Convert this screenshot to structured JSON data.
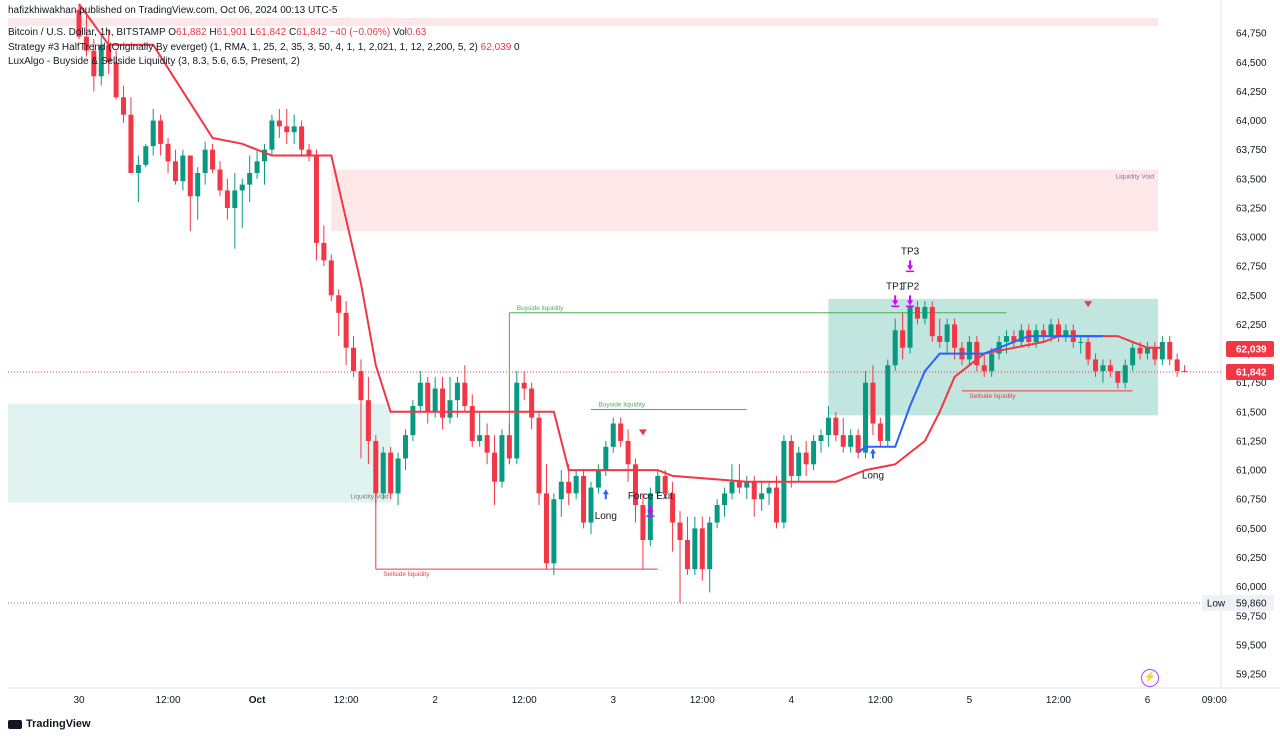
{
  "header": {
    "published": "hafizkhiwakhan published on TradingView.com, Oct 06, 2024 00:13 UTC-5",
    "symbol": "Bitcoin / U.S. Dollar, 1h, BITSTAMP",
    "o_label": "O",
    "o": "61,882",
    "h_label": "H",
    "h": "61,901",
    "l_label": "L",
    "l": "61,842",
    "c_label": "C",
    "c": "61,842",
    "change": "−40 (−0.06%)",
    "vol_label": "Vol",
    "vol": "0.63",
    "strategy": "Strategy #3 HalfTrend (Originally By everget) (1, RMA, 1, 25, 2, 35, 3, 50, 4, 1, 1, 2,021, 1, 12, 2,200, 5, 2)",
    "strategy_value": "62,039",
    "strategy_zero": "0",
    "lux": "LuxAlgo - Buyside & Sellside Liquidity (3, 8.3, 5.6, 6.5, Present, 2)"
  },
  "footer": {
    "brand": "TradingView"
  },
  "chart_data": {
    "type": "candlestick",
    "y_ticks": [
      59250,
      59500,
      59750,
      60000,
      60250,
      60500,
      60750,
      61000,
      61250,
      61500,
      61750,
      62000,
      62250,
      62500,
      62750,
      63000,
      63250,
      63500,
      63750,
      64000,
      64250,
      64500,
      64750
    ],
    "y_tick_labels": [
      "59,250",
      "59,500",
      "59,750",
      "60,000",
      "60,250",
      "60,500",
      "60,750",
      "61,000",
      "61,250",
      "61,500",
      "61,750",
      "62,000",
      "62,250",
      "62,500",
      "62,750",
      "63,000",
      "63,250",
      "63,500",
      "63,750",
      "64,000",
      "64,250",
      "64,500",
      "64,750"
    ],
    "ylim": [
      59130,
      64880
    ],
    "x_ticks": [
      {
        "label": "30",
        "bar": 0
      },
      {
        "label": "12:00",
        "bar": 12
      },
      {
        "label": "Oct",
        "bar": 24
      },
      {
        "label": "12:00",
        "bar": 36
      },
      {
        "label": "2",
        "bar": 48
      },
      {
        "label": "12:00",
        "bar": 60
      },
      {
        "label": "3",
        "bar": 72
      },
      {
        "label": "12:00",
        "bar": 84
      },
      {
        "label": "4",
        "bar": 96
      },
      {
        "label": "12:00",
        "bar": 108
      },
      {
        "label": "5",
        "bar": 120
      },
      {
        "label": "12:00",
        "bar": 132
      },
      {
        "label": "6",
        "bar": 144
      },
      {
        "label": "09:00",
        "bar": 153
      }
    ],
    "price_labels": [
      {
        "text": "62,039",
        "value": 62039,
        "color": "#f23645"
      },
      {
        "text": "61,842",
        "value": 61842,
        "color": "#f23645"
      },
      {
        "text": "59,860",
        "value": 59860,
        "color": "#eef1f6",
        "label": "Low"
      }
    ],
    "candles": [
      [
        64950,
        65000,
        64700,
        64720
      ],
      [
        64720,
        64900,
        64550,
        64600
      ],
      [
        64600,
        64700,
        64250,
        64380
      ],
      [
        64380,
        64720,
        64300,
        64650
      ],
      [
        64650,
        64780,
        64400,
        64500
      ],
      [
        64500,
        64600,
        64180,
        64200
      ],
      [
        64200,
        64300,
        63980,
        64050
      ],
      [
        64050,
        64200,
        63550,
        63550
      ],
      [
        63550,
        63700,
        63300,
        63620
      ],
      [
        63620,
        63800,
        63600,
        63780
      ],
      [
        63780,
        64100,
        63700,
        64000
      ],
      [
        64000,
        64050,
        63700,
        63800
      ],
      [
        63800,
        63850,
        63550,
        63650
      ],
      [
        63650,
        63750,
        63450,
        63480
      ],
      [
        63480,
        63750,
        63400,
        63700
      ],
      [
        63700,
        63700,
        63050,
        63350
      ],
      [
        63350,
        63600,
        63150,
        63550
      ],
      [
        63550,
        63820,
        63450,
        63750
      ],
      [
        63750,
        63800,
        63550,
        63580
      ],
      [
        63580,
        63650,
        63350,
        63400
      ],
      [
        63400,
        63500,
        63150,
        63250
      ],
      [
        63250,
        63550,
        62900,
        63400
      ],
      [
        63400,
        63500,
        63080,
        63450
      ],
      [
        63450,
        63700,
        63300,
        63550
      ],
      [
        63550,
        63750,
        63500,
        63650
      ],
      [
        63650,
        63800,
        63450,
        63750
      ],
      [
        63750,
        64050,
        63700,
        64000
      ],
      [
        64000,
        64100,
        63850,
        63950
      ],
      [
        63950,
        64100,
        63800,
        63900
      ],
      [
        63900,
        64050,
        63800,
        63950
      ],
      [
        63950,
        64000,
        63700,
        63750
      ],
      [
        63750,
        63800,
        63650,
        63700
      ],
      [
        63700,
        63750,
        62800,
        62950
      ],
      [
        62950,
        63100,
        62750,
        62800
      ],
      [
        62800,
        62850,
        62450,
        62500
      ],
      [
        62500,
        62550,
        62150,
        62350
      ],
      [
        62350,
        62450,
        61900,
        62050
      ],
      [
        62050,
        62150,
        61800,
        61850
      ],
      [
        61850,
        61950,
        61100,
        61600
      ],
      [
        61600,
        61800,
        61050,
        61250
      ],
      [
        61250,
        61300,
        60700,
        60800
      ],
      [
        60800,
        61200,
        60750,
        61150
      ],
      [
        61150,
        61200,
        60750,
        60800
      ],
      [
        60800,
        61150,
        60700,
        61100
      ],
      [
        61100,
        61350,
        61000,
        61300
      ],
      [
        61300,
        61600,
        61250,
        61550
      ],
      [
        61550,
        61850,
        61500,
        61750
      ],
      [
        61750,
        61800,
        61400,
        61500
      ],
      [
        61500,
        61800,
        61450,
        61700
      ],
      [
        61700,
        61800,
        61350,
        61450
      ],
      [
        61450,
        61800,
        61400,
        61600
      ],
      [
        61600,
        61800,
        61450,
        61750
      ],
      [
        61750,
        61900,
        61500,
        61550
      ],
      [
        61550,
        61650,
        61200,
        61250
      ],
      [
        61250,
        61500,
        61200,
        61300
      ],
      [
        61300,
        61400,
        61050,
        61150
      ],
      [
        61150,
        61300,
        60700,
        60900
      ],
      [
        60900,
        61350,
        60850,
        61300
      ],
      [
        61300,
        61400,
        61050,
        61100
      ],
      [
        61100,
        61850,
        61050,
        61750
      ],
      [
        61750,
        61850,
        61600,
        61700
      ],
      [
        61700,
        61750,
        61350,
        61450
      ],
      [
        61450,
        61500,
        60700,
        60800
      ],
      [
        60800,
        61050,
        60150,
        60200
      ],
      [
        60200,
        60800,
        60100,
        60750
      ],
      [
        60750,
        61000,
        60600,
        60900
      ],
      [
        60900,
        61050,
        60700,
        60800
      ],
      [
        60800,
        61000,
        60750,
        60950
      ],
      [
        60950,
        61000,
        60500,
        60550
      ],
      [
        60550,
        60900,
        60450,
        60850
      ],
      [
        60850,
        61050,
        60800,
        61000
      ],
      [
        61000,
        61250,
        60950,
        61200
      ],
      [
        61200,
        61450,
        61150,
        61400
      ],
      [
        61400,
        61450,
        61200,
        61250
      ],
      [
        61250,
        61350,
        60900,
        61050
      ],
      [
        61050,
        61100,
        60550,
        60700
      ],
      [
        60700,
        60800,
        60150,
        60400
      ],
      [
        60400,
        60850,
        60350,
        60800
      ],
      [
        60800,
        61000,
        60750,
        60950
      ],
      [
        60950,
        61000,
        60750,
        60800
      ],
      [
        60800,
        60900,
        60300,
        60550
      ],
      [
        60550,
        60650,
        59860,
        60400
      ],
      [
        60400,
        60600,
        60100,
        60150
      ],
      [
        60150,
        60600,
        60100,
        60500
      ],
      [
        60500,
        60600,
        60050,
        60150
      ],
      [
        60150,
        60600,
        59950,
        60550
      ],
      [
        60550,
        60750,
        60500,
        60700
      ],
      [
        60700,
        60850,
        60600,
        60800
      ],
      [
        60800,
        61050,
        60750,
        60900
      ],
      [
        60900,
        61050,
        60800,
        60850
      ],
      [
        60850,
        60950,
        60750,
        60900
      ],
      [
        60900,
        60950,
        60600,
        60750
      ],
      [
        60750,
        60900,
        60650,
        60800
      ],
      [
        60800,
        60900,
        60700,
        60850
      ],
      [
        60850,
        60950,
        60500,
        60550
      ],
      [
        60550,
        61300,
        60500,
        61250
      ],
      [
        61250,
        61300,
        60850,
        60950
      ],
      [
        60950,
        61200,
        60900,
        61150
      ],
      [
        61150,
        61250,
        60950,
        61050
      ],
      [
        61050,
        61300,
        61000,
        61250
      ],
      [
        61250,
        61350,
        61150,
        61300
      ],
      [
        61300,
        61550,
        61200,
        61450
      ],
      [
        61450,
        61500,
        61250,
        61300
      ],
      [
        61300,
        61450,
        61150,
        61200
      ],
      [
        61200,
        61350,
        61150,
        61300
      ],
      [
        61300,
        61350,
        61100,
        61150
      ],
      [
        61150,
        61850,
        61100,
        61750
      ],
      [
        61750,
        61900,
        61300,
        61400
      ],
      [
        61400,
        61450,
        61200,
        61250
      ],
      [
        61250,
        61950,
        61200,
        61900
      ],
      [
        61900,
        62300,
        61850,
        62200
      ],
      [
        62200,
        62350,
        61950,
        62050
      ],
      [
        62050,
        62450,
        62000,
        62400
      ],
      [
        62400,
        62450,
        62250,
        62300
      ],
      [
        62300,
        62450,
        62250,
        62400
      ],
      [
        62400,
        62450,
        62100,
        62150
      ],
      [
        62150,
        62300,
        62050,
        62100
      ],
      [
        62100,
        62300,
        62000,
        62250
      ],
      [
        62250,
        62300,
        61950,
        62050
      ],
      [
        62050,
        62100,
        61900,
        61950
      ],
      [
        61950,
        62150,
        61900,
        62100
      ],
      [
        62100,
        62150,
        61850,
        61900
      ],
      [
        61900,
        62000,
        61800,
        61850
      ],
      [
        61850,
        62050,
        61800,
        62000
      ],
      [
        62000,
        62150,
        61950,
        62100
      ],
      [
        62100,
        62200,
        62000,
        62150
      ],
      [
        62150,
        62200,
        62050,
        62100
      ],
      [
        62100,
        62250,
        62050,
        62200
      ],
      [
        62200,
        62250,
        62050,
        62100
      ],
      [
        62100,
        62250,
        62050,
        62200
      ],
      [
        62200,
        62250,
        62100,
        62150
      ],
      [
        62150,
        62300,
        62100,
        62250
      ],
      [
        62250,
        62300,
        62100,
        62150
      ],
      [
        62150,
        62250,
        62100,
        62200
      ],
      [
        62200,
        62250,
        62050,
        62100
      ],
      [
        62100,
        62150,
        62000,
        62100
      ],
      [
        62100,
        62150,
        61900,
        61950
      ],
      [
        61950,
        62000,
        61800,
        61850
      ],
      [
        61850,
        61950,
        61750,
        61900
      ],
      [
        61900,
        61950,
        61800,
        61850
      ],
      [
        61850,
        61850,
        61700,
        61750
      ],
      [
        61750,
        61950,
        61700,
        61900
      ],
      [
        61900,
        62100,
        61850,
        62050
      ],
      [
        62050,
        62100,
        61950,
        62000
      ],
      [
        62000,
        62100,
        61950,
        62050
      ],
      [
        62050,
        62100,
        61900,
        61950
      ],
      [
        61950,
        62150,
        61900,
        62100
      ],
      [
        62100,
        62150,
        61900,
        61950
      ],
      [
        61950,
        62000,
        61800,
        61850
      ],
      [
        61850,
        61901,
        61842,
        61842
      ]
    ],
    "halftrend_line": [
      [
        0,
        65000
      ],
      [
        4,
        64650
      ],
      [
        10,
        64650
      ],
      [
        12,
        64450
      ],
      [
        14,
        64250
      ],
      [
        18,
        63850
      ],
      [
        22,
        63800
      ],
      [
        24,
        63750
      ],
      [
        26,
        63700
      ],
      [
        34,
        63700
      ],
      [
        38,
        62600
      ],
      [
        40,
        61900
      ],
      [
        42,
        61500
      ],
      [
        44,
        61500
      ],
      [
        58,
        61500
      ],
      [
        60,
        61500
      ],
      [
        62,
        61500
      ],
      [
        64,
        61500
      ],
      [
        66,
        61000
      ],
      [
        74,
        61000
      ],
      [
        78,
        61000
      ],
      [
        80,
        60950
      ],
      [
        90,
        60900
      ],
      [
        102,
        60900
      ],
      [
        106,
        61000
      ],
      [
        110,
        61050
      ],
      [
        112,
        61150
      ],
      [
        114,
        61250
      ],
      [
        116,
        61500
      ],
      [
        118,
        61800
      ],
      [
        122,
        62000
      ],
      [
        126,
        62050
      ],
      [
        130,
        62100
      ],
      [
        132,
        62150
      ],
      [
        140,
        62150
      ],
      [
        144,
        62050
      ],
      [
        146,
        62050
      ]
    ],
    "halftrend_blue": [
      [
        105,
        61150
      ],
      [
        106,
        61200
      ],
      [
        110,
        61200
      ],
      [
        112,
        61550
      ],
      [
        114,
        61850
      ],
      [
        116,
        62000
      ],
      [
        122,
        62000
      ],
      [
        126,
        62100
      ],
      [
        128,
        62150
      ],
      [
        136,
        62150
      ],
      [
        138,
        62150
      ]
    ],
    "zones": [
      {
        "kind": "liquidity-void-top",
        "bars": [
          34,
          146
        ],
        "y": [
          63050,
          63580
        ],
        "color": "#f23645",
        "label": "Liquidity Void"
      },
      {
        "kind": "liquidity-void-left",
        "bars": [
          -10,
          42
        ],
        "y": [
          60720,
          61570
        ],
        "color": "#089981",
        "label": "Liquidity Void"
      },
      {
        "kind": "buyside-box",
        "bars": [
          101,
          146
        ],
        "y": [
          61470,
          62470
        ],
        "color": "#089981"
      },
      {
        "kind": "top-red-band",
        "bars": [
          -10,
          146
        ],
        "y": [
          64810,
          64880
        ],
        "color": "#f23645"
      }
    ],
    "liquidity_lines": [
      {
        "label": "Buyside liquidity",
        "bars": [
          58,
          125
        ],
        "y": 62350,
        "color": "#4caf50",
        "label_bar": 59,
        "vertical_from": 61050
      },
      {
        "label": "Buyside liquidity",
        "bars": [
          69,
          90
        ],
        "y": 61520,
        "color": "#4caf50",
        "label_bar": 70
      },
      {
        "label": "Sellside liquidity",
        "bars": [
          40,
          78
        ],
        "y": 60150,
        "color": "#f23645",
        "label_bar": 41,
        "vertical_from": 61200
      },
      {
        "label": "Sellside liquidity",
        "bars": [
          119,
          142
        ],
        "y": 61680,
        "color": "#f23645",
        "label_bar": 120
      }
    ],
    "dotted_lines": [
      {
        "y": 61842,
        "color": "#f23645"
      },
      {
        "y": 59860,
        "color": "#787b86"
      }
    ],
    "markers": [
      {
        "text": "Long",
        "bar": 71,
        "y": 60750,
        "color": "#2962ff",
        "dir": "up"
      },
      {
        "text": "Long",
        "bar": 107,
        "y": 61100,
        "color": "#2962ff",
        "dir": "up"
      },
      {
        "text": "Force Exit",
        "bar": 77,
        "y": 60700,
        "color": "#d500f9",
        "dir": "down"
      },
      {
        "text": "TP1",
        "bar": 110,
        "y": 62500,
        "color": "#d500f9",
        "dir": "down"
      },
      {
        "text": "TP2",
        "bar": 112,
        "y": 62500,
        "color": "#d500f9",
        "dir": "down"
      },
      {
        "text": "TP3",
        "bar": 112,
        "y": 62800,
        "color": "#d500f9",
        "dir": "down"
      }
    ],
    "red_triangles": [
      {
        "bar": 76,
        "y": 61350
      },
      {
        "bar": 136,
        "y": 62450
      }
    ]
  }
}
